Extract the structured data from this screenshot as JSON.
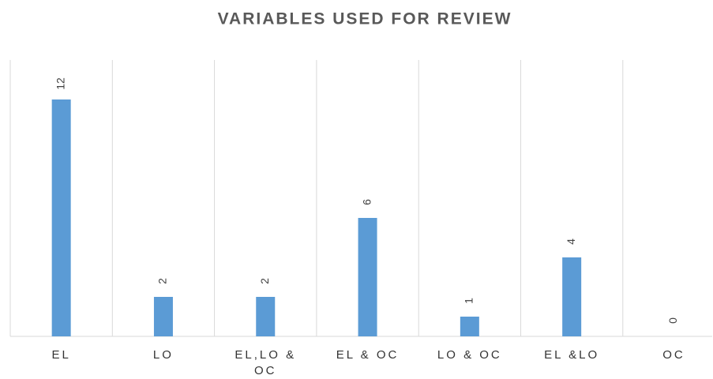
{
  "chart_data": {
    "type": "bar",
    "title": "VARIABLES USED FOR REVIEW",
    "categories": [
      "EL",
      "LO",
      "EL,LO & OC",
      "EL & OC",
      "LO & OC",
      "EL &LO",
      "OC"
    ],
    "values": [
      12,
      2,
      2,
      6,
      1,
      4,
      0
    ],
    "color": "#5b9bd5",
    "ylim": [
      0,
      14
    ]
  }
}
